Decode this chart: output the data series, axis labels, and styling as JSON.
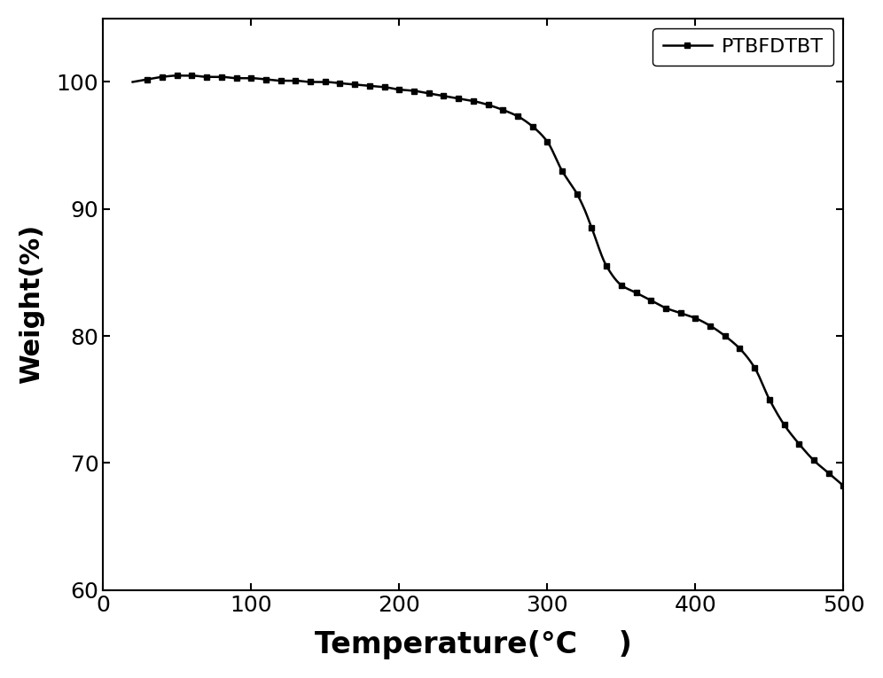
{
  "title": "",
  "xlabel": "Temperature(°C    )",
  "ylabel": "Weight(%)",
  "xlim": [
    0,
    500
  ],
  "ylim": [
    60,
    105
  ],
  "yticks": [
    60,
    70,
    80,
    90,
    100
  ],
  "xticks": [
    0,
    100,
    200,
    300,
    400,
    500
  ],
  "legend_label": "PTBFDTBT",
  "line_color": "#000000",
  "marker": "s",
  "markersize": 5,
  "linewidth": 1.8,
  "background_color": "#ffffff",
  "key_x": [
    20,
    30,
    40,
    50,
    60,
    70,
    80,
    90,
    100,
    110,
    120,
    130,
    140,
    150,
    160,
    170,
    180,
    190,
    200,
    210,
    220,
    230,
    240,
    250,
    260,
    270,
    280,
    290,
    300,
    310,
    320,
    325,
    330,
    340,
    350,
    360,
    370,
    380,
    390,
    400,
    410,
    420,
    430,
    440,
    450,
    460,
    470,
    480,
    490,
    500
  ],
  "key_y": [
    100.0,
    100.2,
    100.4,
    100.5,
    100.5,
    100.4,
    100.4,
    100.3,
    100.3,
    100.2,
    100.1,
    100.1,
    100.0,
    100.0,
    99.9,
    99.8,
    99.7,
    99.6,
    99.4,
    99.3,
    99.1,
    98.9,
    98.7,
    98.5,
    98.2,
    97.8,
    97.3,
    96.5,
    95.3,
    93.0,
    91.2,
    90.0,
    88.5,
    85.5,
    84.0,
    83.4,
    82.8,
    82.2,
    81.8,
    81.4,
    80.8,
    80.0,
    79.0,
    77.5,
    75.0,
    73.0,
    71.5,
    70.2,
    69.2,
    68.2
  ]
}
